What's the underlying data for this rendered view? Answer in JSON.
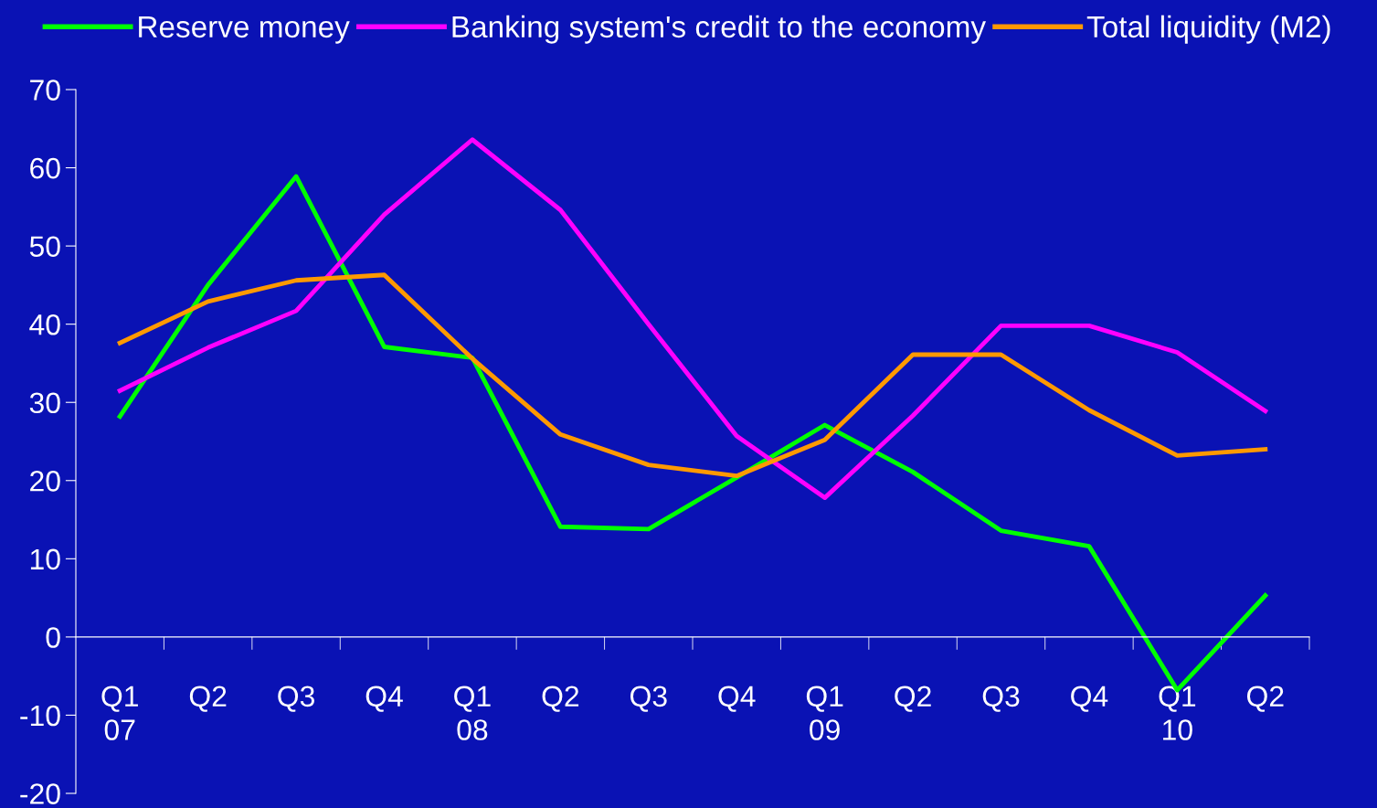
{
  "chart_data": {
    "type": "line",
    "categories": [
      "Q1\n07",
      "Q2",
      "Q3",
      "Q4",
      "Q1\n08",
      "Q2",
      "Q3",
      "Q4",
      "Q1\n09",
      "Q2",
      "Q3",
      "Q4",
      "Q1\n10",
      "Q2"
    ],
    "series": [
      {
        "name": "Reserve money",
        "color": "#00ff00",
        "values": [
          28.2,
          45,
          58.9,
          37.1,
          35.7,
          14.1,
          13.8,
          20.4,
          27.1,
          21.1,
          13.6,
          11.6,
          -6.8,
          5.3
        ]
      },
      {
        "name": "Banking system's credit to the economy",
        "color": "#ff00ff",
        "values": [
          31.5,
          37,
          41.7,
          54,
          63.6,
          54.6,
          40,
          25.7,
          17.8,
          28.3,
          39.8,
          39.8,
          36.4,
          28.9
        ]
      },
      {
        "name": "Total liquidity (M2)",
        "color": "#ff9900",
        "values": [
          37.6,
          42.9,
          45.6,
          46.3,
          35.6,
          25.9,
          22,
          20.6,
          25.2,
          36.1,
          36.1,
          29,
          23.2,
          24
        ]
      }
    ],
    "ylim": [
      -20,
      70
    ],
    "yticks": [
      -20,
      -10,
      0,
      10,
      20,
      30,
      40,
      50,
      60,
      70
    ],
    "grid": false,
    "legend": "top",
    "marker": "none",
    "line_style": "solid"
  }
}
